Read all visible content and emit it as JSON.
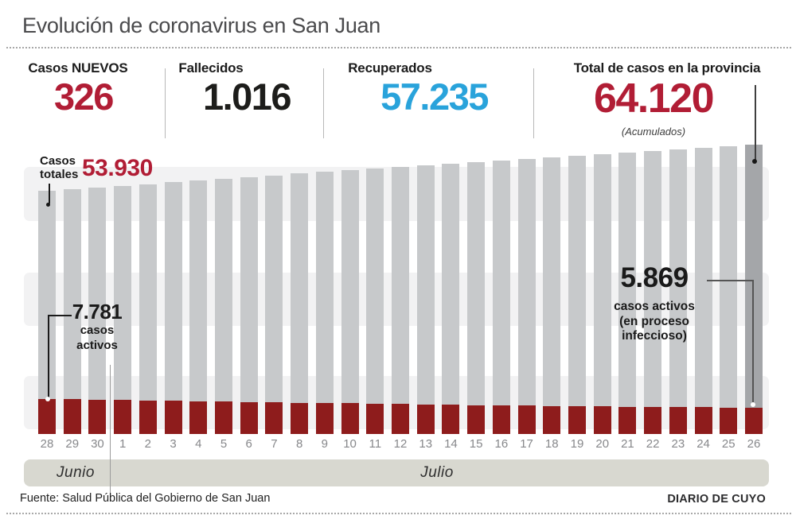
{
  "title": "Evolución de coronavirus en San Juan",
  "stats": [
    {
      "label": "Casos NUEVOS",
      "value": "326",
      "color": "#b11d35"
    },
    {
      "label": "Fallecidos",
      "value": "1.016",
      "color": "#1d1d1b"
    },
    {
      "label": "Recuperados",
      "value": "57.235",
      "color": "#29a3db"
    },
    {
      "label": "Total de casos en la provincia",
      "value": "64.120",
      "note": "(Acumulados)",
      "color": "#b11d35"
    }
  ],
  "chart_labels": {
    "totals_pointer": "Casos totales",
    "first_total": "53.930",
    "first_active_value": "7.781",
    "first_active_line1": "casos",
    "first_active_line2": "activos",
    "last_active_value": "5.869",
    "last_active_line1": "casos activos",
    "last_active_line2": "(en proceso",
    "last_active_line3": "infeccioso)"
  },
  "axis": {
    "month1": "Junio",
    "month2": "Julio"
  },
  "footer": {
    "source": "Fuente: Salud Pública del Gobierno de San Juan",
    "credit": "DIARIO DE CUYO"
  },
  "colors": {
    "accent_red": "#b11d35",
    "accent_blue": "#29a3db",
    "bar_gray": "#c7c9cb",
    "bar_gray_highlight": "#a4a6a9",
    "bar_active_red": "#8e1c1c",
    "background_band": "#f2f2f3",
    "month_band": "#d8d8d0"
  },
  "chart_data": {
    "type": "bar",
    "note": "Overlaid bars: total accumulated cases (gray) with active cases (dark red) at the base. Only the endpoint values are labeled in the graphic; intermediate values are estimated from bar heights.",
    "x": [
      "Jun 28",
      "Jun 29",
      "Jun 30",
      "Jul 1",
      "Jul 2",
      "Jul 3",
      "Jul 4",
      "Jul 5",
      "Jul 6",
      "Jul 7",
      "Jul 8",
      "Jul 9",
      "Jul 10",
      "Jul 11",
      "Jul 12",
      "Jul 13",
      "Jul 14",
      "Jul 15",
      "Jul 16",
      "Jul 17",
      "Jul 18",
      "Jul 19",
      "Jul 20",
      "Jul 21",
      "Jul 22",
      "Jul 23",
      "Jul 24",
      "Jul 25",
      "Jul 26"
    ],
    "day_ticks": [
      "28",
      "29",
      "30",
      "1",
      "2",
      "3",
      "4",
      "5",
      "6",
      "7",
      "8",
      "9",
      "10",
      "11",
      "12",
      "13",
      "14",
      "15",
      "16",
      "17",
      "18",
      "19",
      "20",
      "21",
      "22",
      "23",
      "24",
      "25",
      "26"
    ],
    "month_groups": [
      {
        "label": "Junio",
        "count": 3
      },
      {
        "label": "Julio",
        "count": 26
      }
    ],
    "series": [
      {
        "name": "Casos totales (acumulados)",
        "values": [
          53930,
          54220,
          54600,
          55000,
          55390,
          55780,
          56150,
          56530,
          56920,
          57310,
          57700,
          58080,
          58460,
          58830,
          59200,
          59570,
          59940,
          60300,
          60660,
          61020,
          61370,
          61720,
          62070,
          62420,
          62760,
          63100,
          63440,
          63794,
          64120
        ]
      },
      {
        "name": "Casos activos (en proceso infeccioso)",
        "values": [
          7781,
          7720,
          7650,
          7560,
          7470,
          7380,
          7300,
          7210,
          7120,
          7030,
          6950,
          6870,
          6790,
          6710,
          6640,
          6560,
          6490,
          6420,
          6350,
          6280,
          6210,
          6150,
          6090,
          6030,
          5980,
          5940,
          5910,
          5890,
          5869
        ]
      }
    ],
    "ylim": [
      0,
      64120
    ],
    "grid": "three light horizontal background bands",
    "legend_position": "none (direct labels with leader lines)",
    "labeled_points": [
      {
        "x": "Jun 28",
        "series": "Casos totales (acumulados)",
        "value": 53930
      },
      {
        "x": "Jun 28",
        "series": "Casos activos (en proceso infeccioso)",
        "value": 7781
      },
      {
        "x": "Jul 26",
        "series": "Casos totales (acumulados)",
        "value": 64120
      },
      {
        "x": "Jul 26",
        "series": "Casos activos (en proceso infeccioso)",
        "value": 5869
      }
    ]
  }
}
